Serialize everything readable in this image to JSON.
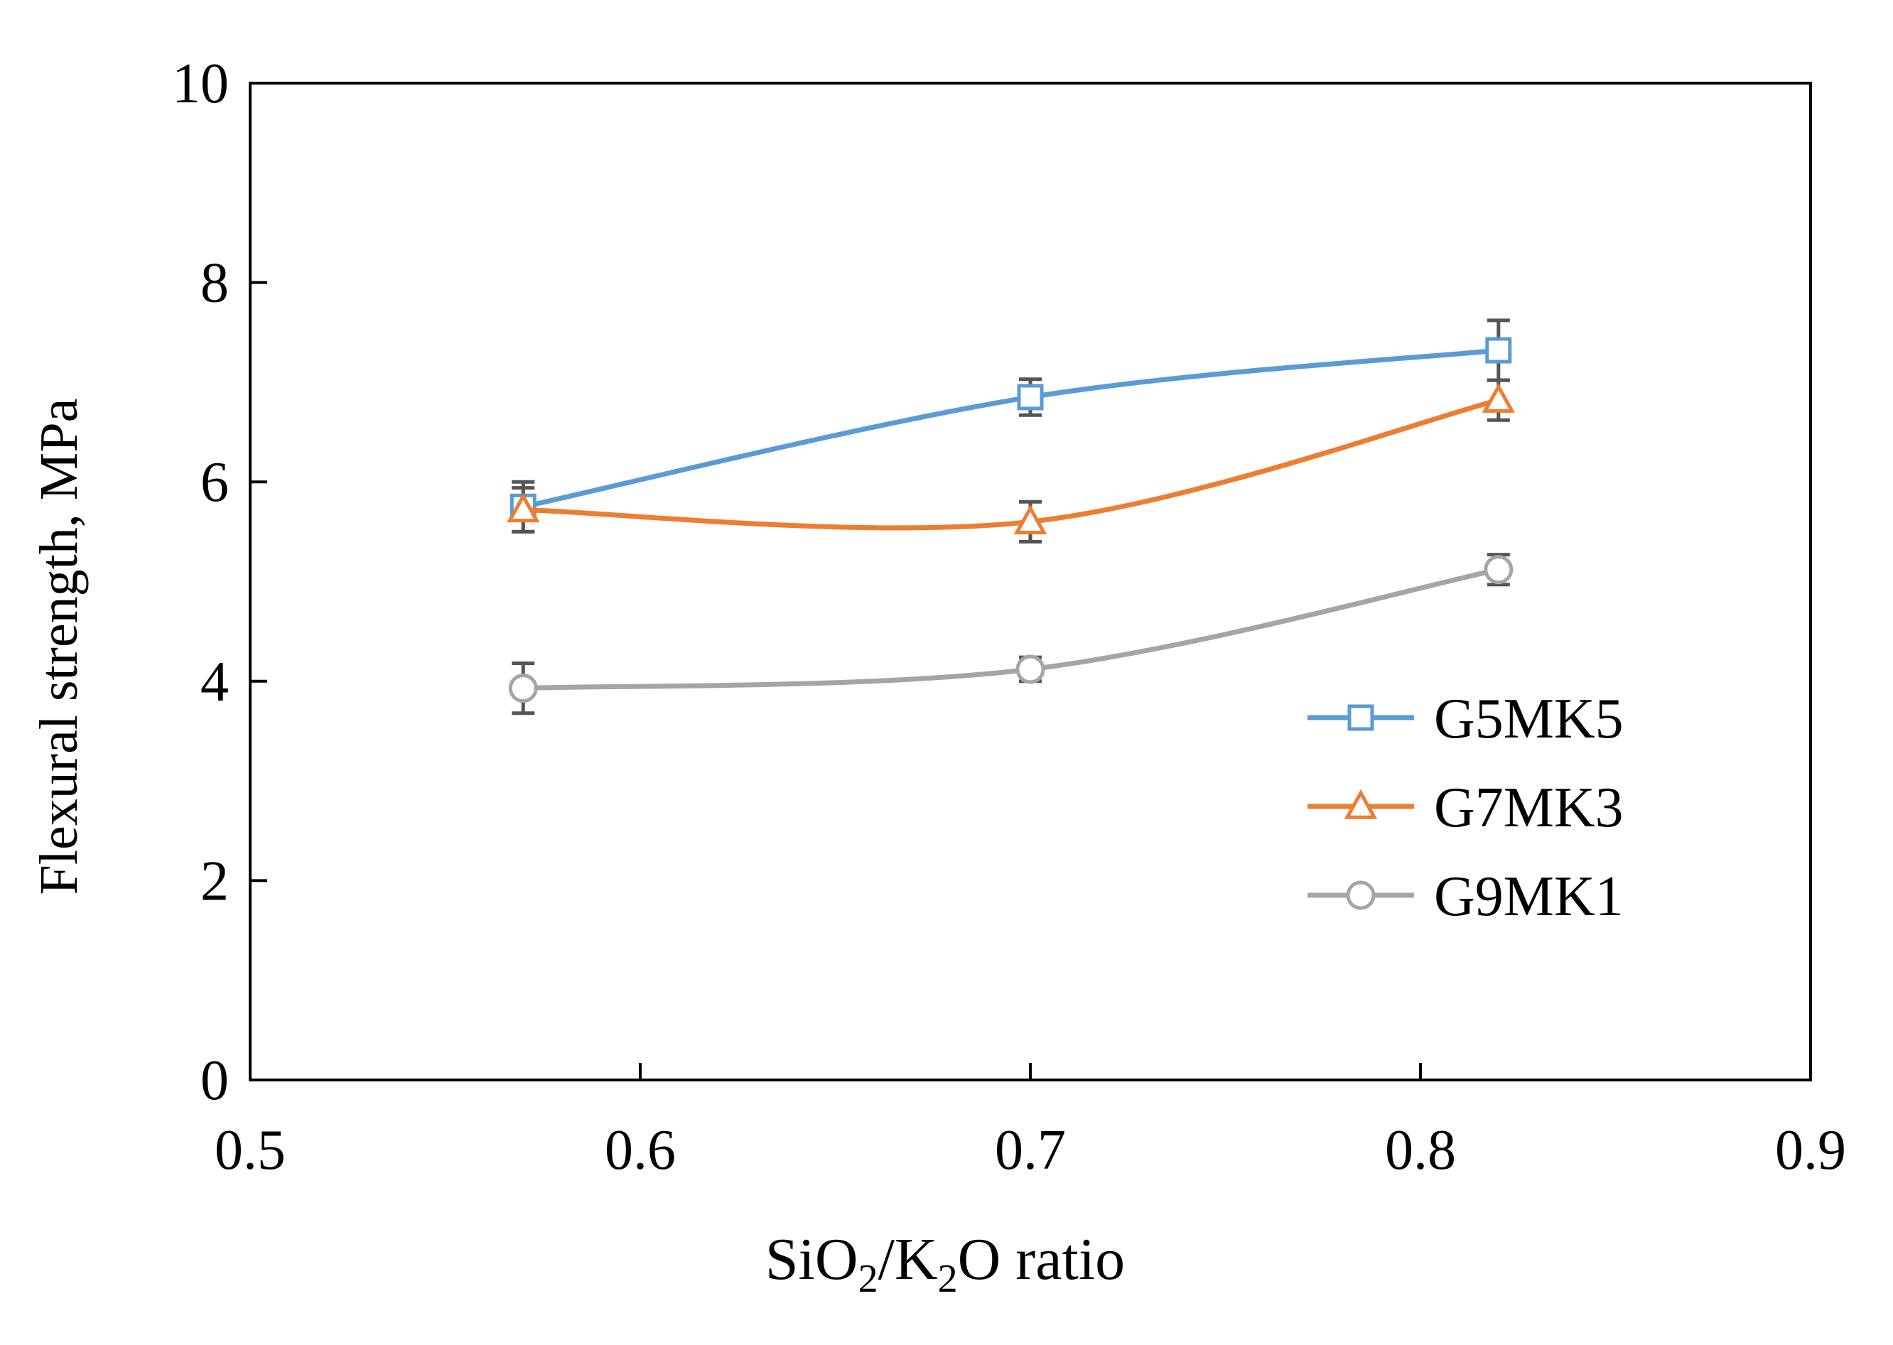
{
  "chart_data": {
    "type": "line",
    "title": "",
    "xlabel": "SiO2/K2O ratio",
    "xlabel_parts": {
      "a": "SiO",
      "sub1": "2",
      "b": "/K",
      "sub2": "2",
      "c": "O ratio"
    },
    "ylabel": "Flexural strength, MPa",
    "xlim": [
      0.5,
      0.9
    ],
    "ylim": [
      0,
      10
    ],
    "xticks": [
      0.5,
      0.6,
      0.7,
      0.8,
      0.9
    ],
    "xtick_labels": [
      "0.5",
      "0.6",
      "0.7",
      "0.8",
      "0.9"
    ],
    "yticks": [
      0,
      2,
      4,
      6,
      8,
      10
    ],
    "ytick_labels": [
      "0",
      "2",
      "4",
      "6",
      "8",
      "10"
    ],
    "grid": false,
    "legend_position": "right-middle",
    "x": [
      0.57,
      0.7,
      0.82
    ],
    "series": [
      {
        "name": "G5MK5",
        "color": "#5B9BD5",
        "marker": "square",
        "values": [
          5.75,
          6.85,
          7.32
        ],
        "errors": [
          0.25,
          0.18,
          0.3
        ]
      },
      {
        "name": "G7MK3",
        "color": "#ED7D31",
        "marker": "triangle",
        "values": [
          5.72,
          5.6,
          6.82
        ],
        "errors": [
          0.22,
          0.2,
          0.2
        ]
      },
      {
        "name": "G9MK1",
        "color": "#A5A5A5",
        "marker": "circle",
        "values": [
          3.93,
          4.12,
          5.12
        ],
        "errors": [
          0.25,
          0.12,
          0.15
        ]
      }
    ],
    "error_bar_color": "#555555"
  }
}
